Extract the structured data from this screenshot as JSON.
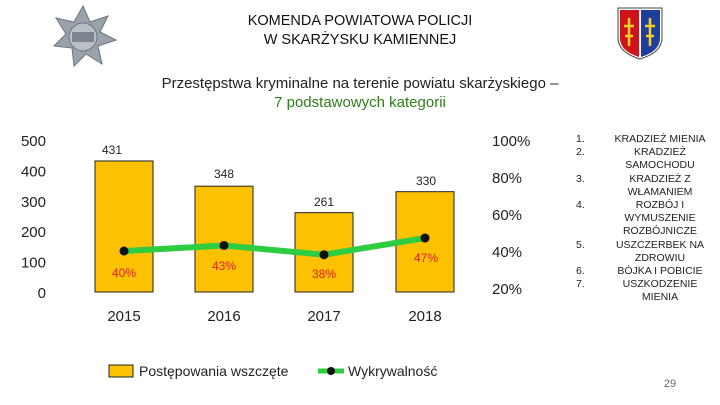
{
  "header": {
    "title_line1": "KOMENDA POWIATOWA POLICJI",
    "title_line2": "W SKARŻYSKU KAMIENNEJ"
  },
  "logos": {
    "police_star": "police-star-badge",
    "coat_of_arms": "coat-of-arms"
  },
  "subtitle": {
    "line1": "Przestępstwa kryminalne na terenie powiatu skarżyskiego –",
    "line2": "7 podstawowych kategorii"
  },
  "chart_data": {
    "type": "bar",
    "categories": [
      "2015",
      "2016",
      "2017",
      "2018"
    ],
    "series": [
      {
        "name": "Postępowania wszczęte",
        "kind": "bar",
        "axis": "left",
        "color": "#fcc101",
        "values": [
          431,
          348,
          261,
          330
        ],
        "labels": [
          "431",
          "348",
          "261",
          "330"
        ]
      },
      {
        "name": "Wykrywalność",
        "kind": "line",
        "axis": "right",
        "color": "#2ecc40",
        "values": [
          40,
          43,
          38,
          47
        ],
        "labels": [
          "40%",
          "43%",
          "38%",
          "47%"
        ]
      }
    ],
    "left_axis": {
      "ticks": [
        "0",
        "100",
        "200",
        "300",
        "400",
        "500"
      ],
      "ylim": [
        0,
        500
      ]
    },
    "right_axis": {
      "ticks": [
        "20%",
        "40%",
        "60%",
        "80%",
        "100%"
      ]
    },
    "legend": [
      "Postępowania wszczęte",
      "Wykrywalność"
    ],
    "legend_position": "bottom"
  },
  "crime_list": [
    {
      "num": "1.",
      "label": "KRADZIEŻ MIENIA"
    },
    {
      "num": "2.",
      "label": "KRADZIEŻ SAMOCHODU"
    },
    {
      "num": "3.",
      "label": "KRADZIEŻ Z WŁAMANIEM"
    },
    {
      "num": "4.",
      "label": "ROZBÓJ I WYMUSZENIE ROZBÓJNICZE"
    },
    {
      "num": "5.",
      "label": "USZCZERBEK NA ZDROWIU"
    },
    {
      "num": "6.",
      "label": "BÓJKA I POBICIE"
    },
    {
      "num": "7.",
      "label": "USZKODZENIE MIENIA"
    }
  ],
  "page_number": "29"
}
